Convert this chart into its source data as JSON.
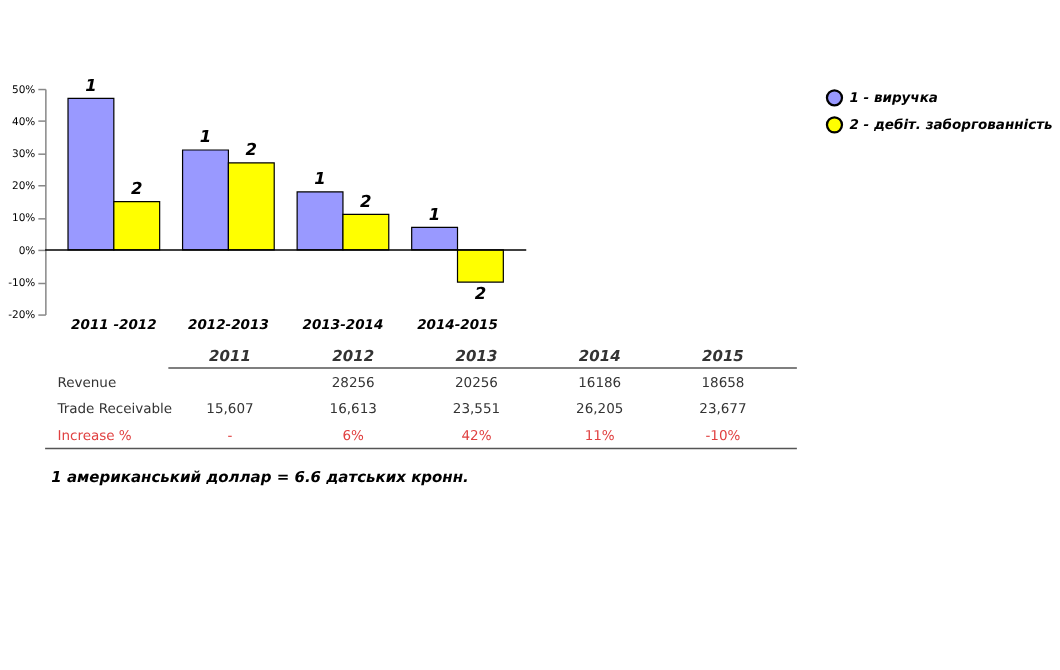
{
  "chart_data": {
    "type": "bar",
    "categories": [
      "2011 -2012",
      "2012-2013",
      "2013-2014",
      "2014-2015"
    ],
    "series": [
      {
        "name": "1 - виручка",
        "color": "#9999ff",
        "values": [
          47,
          31,
          18,
          7
        ]
      },
      {
        "name": "2 - дебіт. заборгованність",
        "color": "#ffff00",
        "values": [
          15,
          27,
          11,
          -10
        ]
      }
    ],
    "ylim": [
      -20,
      50
    ],
    "yticks": [
      {
        "value": -20,
        "label": "-20%"
      },
      {
        "value": -10,
        "label": "-10%"
      },
      {
        "value": 0,
        "label": "0%"
      },
      {
        "value": 10,
        "label": "10%"
      },
      {
        "value": 20,
        "label": "20%"
      },
      {
        "value": 30,
        "label": "30%"
      },
      {
        "value": 40,
        "label": "40%"
      },
      {
        "value": 50,
        "label": "50%"
      }
    ],
    "legend": "right",
    "annotations": [
      {
        "text": "1",
        "x": "2011 -2012",
        "y": 47
      },
      {
        "text": "1",
        "x": "2012-2013",
        "y": 31
      },
      {
        "text": "1",
        "x": "2013-2014",
        "y": 18
      },
      {
        "text": "1",
        "x": "2014-2015",
        "y": 7
      },
      {
        "text": "2",
        "x": "2011 -2012",
        "y": 15
      },
      {
        "text": "2",
        "x": "2012-2013",
        "y": 27
      },
      {
        "text": "2",
        "x": "2013-2014",
        "y": 11
      },
      {
        "text": "2",
        "x": "2014-2015",
        "y": -10
      },
      "2011",
      "2012",
      "2013",
      "2014",
      "2015",
      "Revenue",
      "28256",
      "20256",
      "16186",
      "18658",
      "Trade Receivable",
      "15,607",
      "16,613",
      "23,551",
      "26,205",
      "23,677",
      "Increase %",
      "-",
      "6%",
      "42%",
      "11%",
      "-10%",
      "1 американський доллар = 6.6 датських кронн."
    ]
  }
}
